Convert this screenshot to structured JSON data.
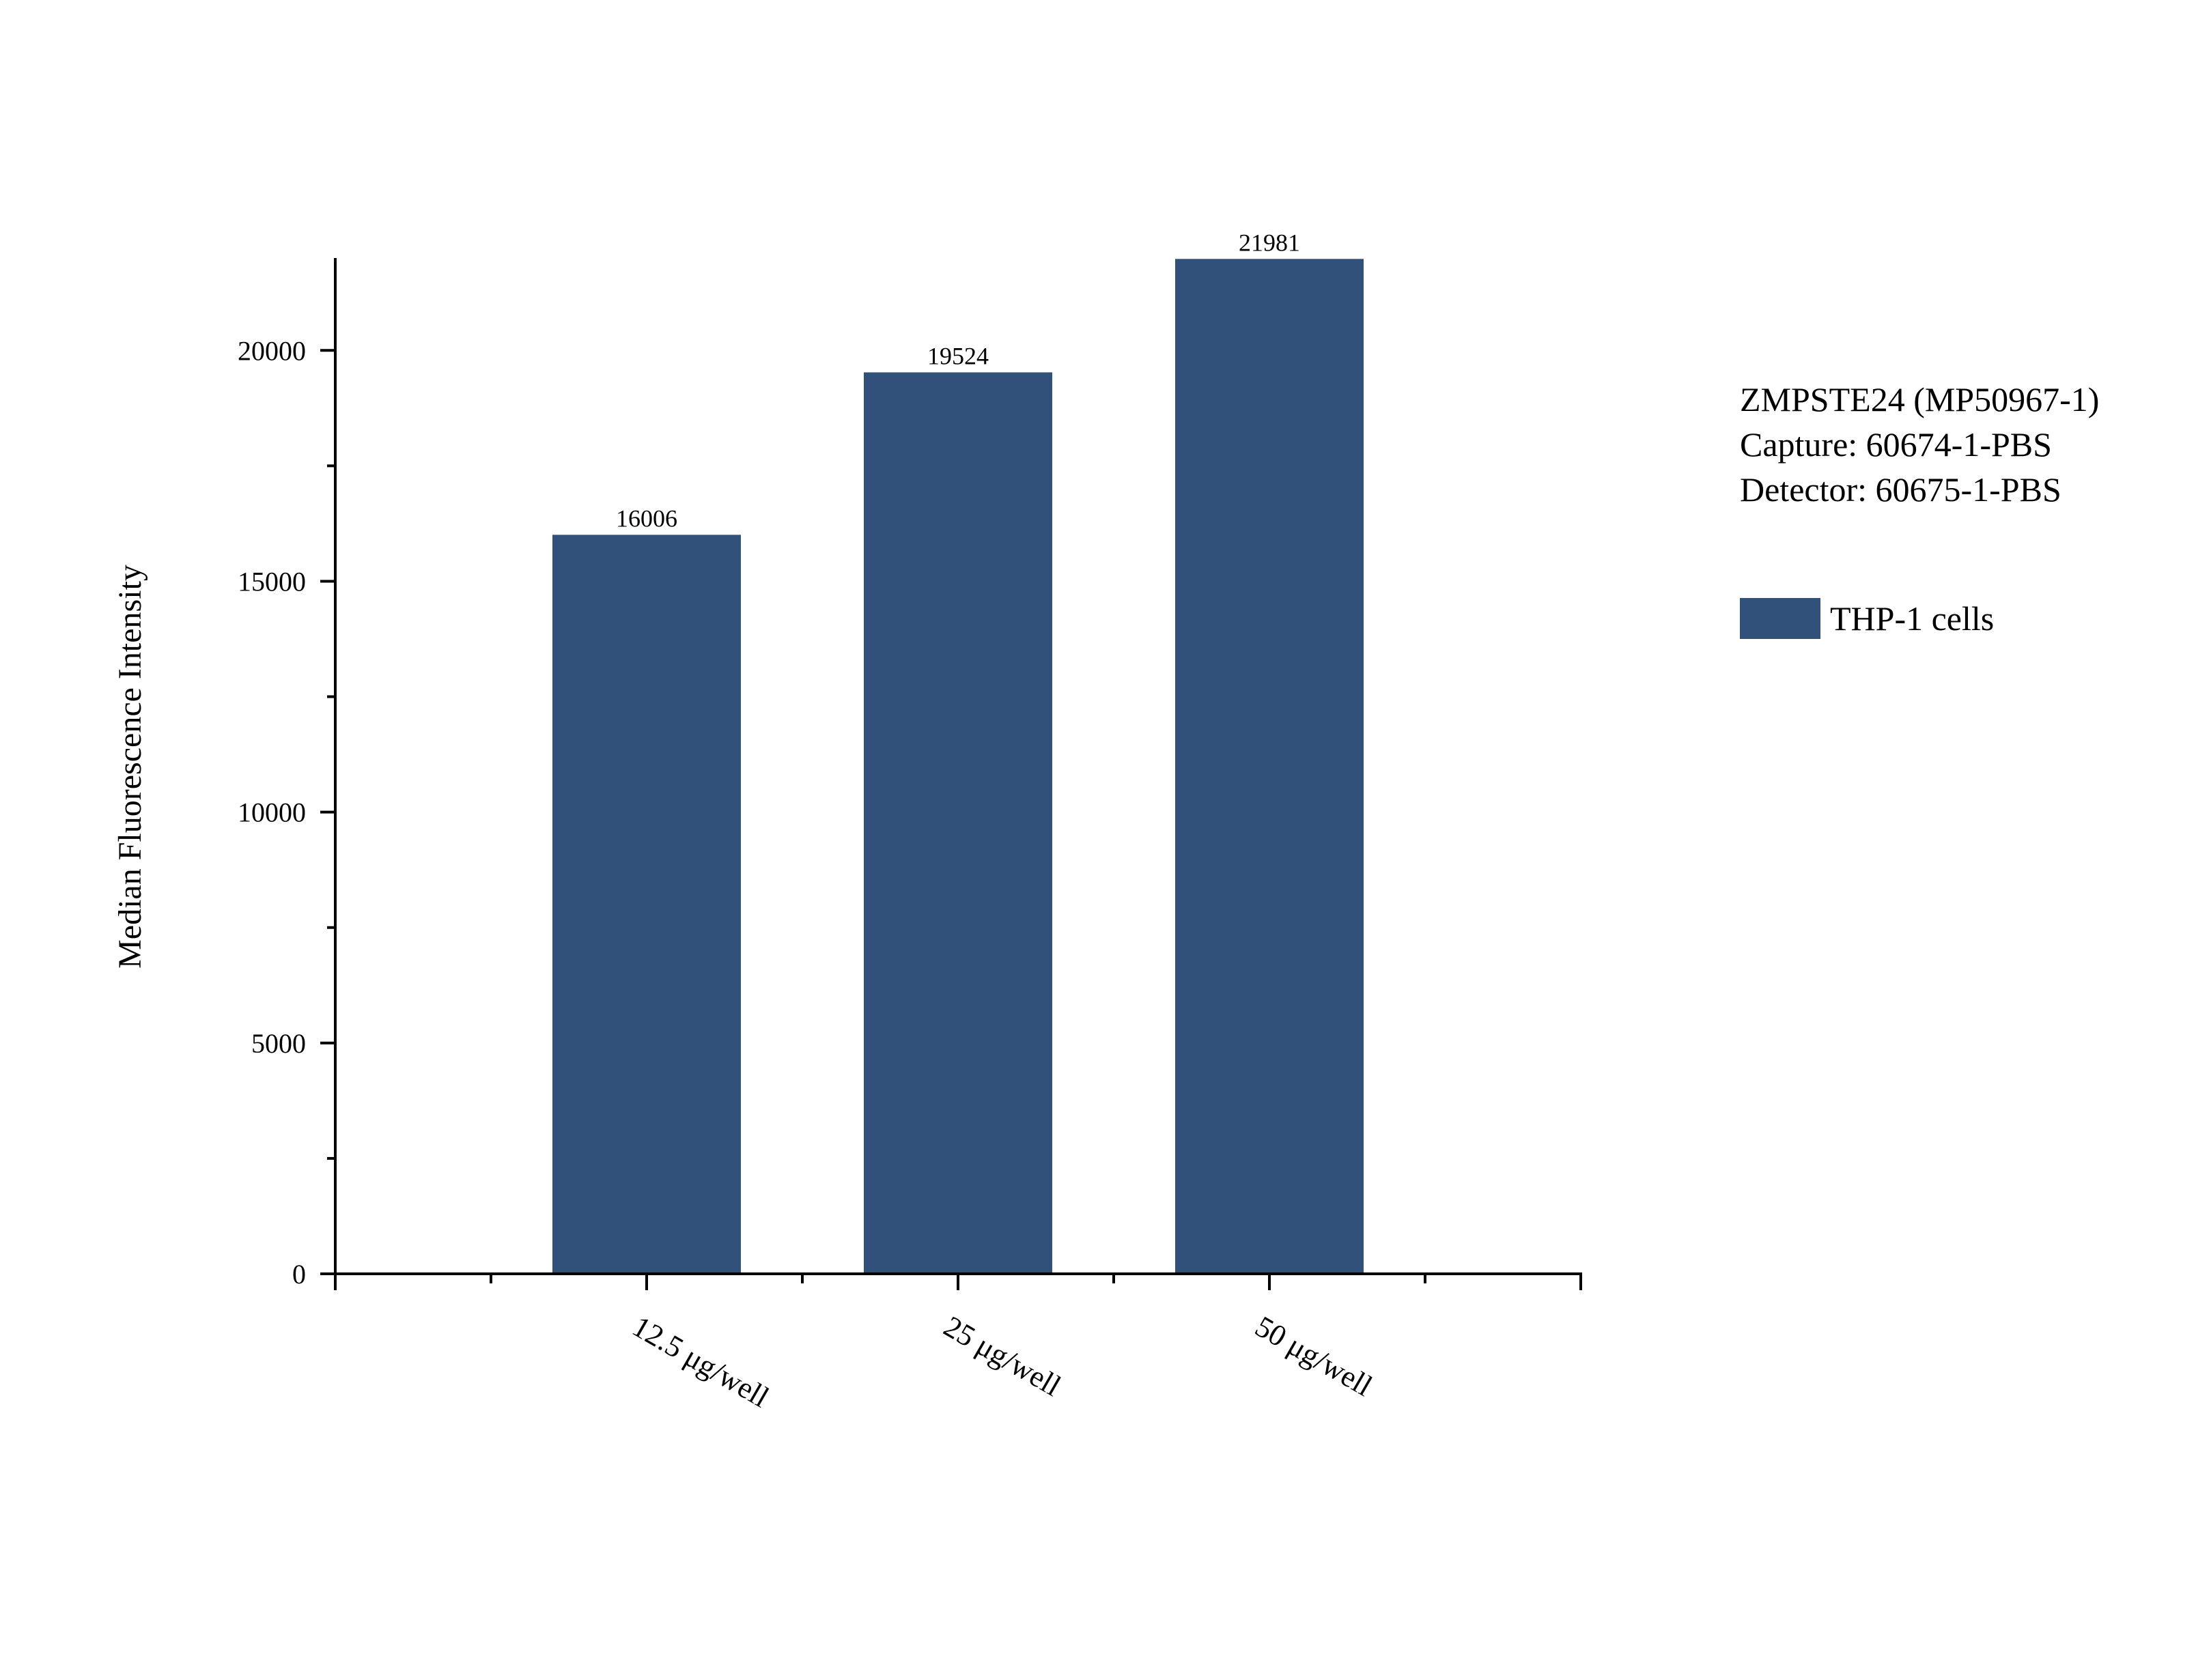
{
  "chart_data": {
    "type": "bar",
    "categories": [
      "12.5 μg/well",
      "25 μg/well",
      "50 μg/well"
    ],
    "series": [
      {
        "name": "THP-1 cells",
        "values": [
          16006,
          19524,
          21981
        ]
      }
    ],
    "data_labels": [
      "16006",
      "19524",
      "21981"
    ],
    "xlabel": "",
    "ylabel": "Median Fluorescence Intensity",
    "ylim": [
      0,
      22000
    ],
    "yticks": [
      0,
      5000,
      10000,
      15000,
      20000
    ],
    "yticks_minor": [
      2500,
      7500,
      12500,
      17500
    ],
    "bar_color": "#31507a",
    "grid": false,
    "legend_position": "right"
  },
  "info": {
    "lines": [
      "ZMPSTE24 (MP50967-1)",
      "Capture: 60674-1-PBS",
      "Detector: 60675-1-PBS"
    ]
  },
  "legend": {
    "label": "THP-1 cells"
  }
}
